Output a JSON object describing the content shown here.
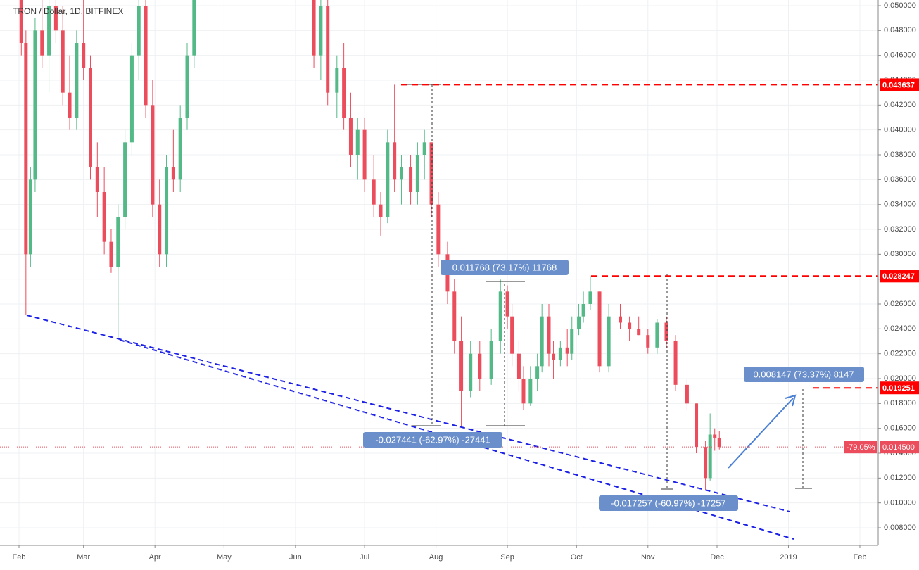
{
  "chart_data": {
    "type": "candlestick",
    "title": "TRON / Dollar, 1D, BITFINEX",
    "up_color": "#53b987",
    "down_color": "#eb4d5c",
    "grid": true,
    "xlim": [
      23.75,
      404.95
    ],
    "ylim": [
      0.006585,
      0.050453
    ],
    "xticks": [
      {
        "value": 32,
        "label": "Feb"
      },
      {
        "value": 60,
        "label": "Mar"
      },
      {
        "value": 91,
        "label": "Apr"
      },
      {
        "value": 121,
        "label": "May"
      },
      {
        "value": 152,
        "label": "Jun"
      },
      {
        "value": 182,
        "label": "Jul"
      },
      {
        "value": 213,
        "label": "Aug"
      },
      {
        "value": 244,
        "label": "Sep"
      },
      {
        "value": 274,
        "label": "Oct"
      },
      {
        "value": 305,
        "label": "Nov"
      },
      {
        "value": 335,
        "label": "Dec"
      },
      {
        "value": 366,
        "label": "2019"
      },
      {
        "value": 397,
        "label": "Feb"
      }
    ],
    "yticks": [
      {
        "value": 0.008,
        "label": "0.008000"
      },
      {
        "value": 0.01,
        "label": "0.010000"
      },
      {
        "value": 0.012,
        "label": "0.012000"
      },
      {
        "value": 0.014,
        "label": "0.014000"
      },
      {
        "value": 0.016,
        "label": "0.016000"
      },
      {
        "value": 0.018,
        "label": "0.018000"
      },
      {
        "value": 0.02,
        "label": "0.020000"
      },
      {
        "value": 0.022,
        "label": "0.022000"
      },
      {
        "value": 0.024,
        "label": "0.024000"
      },
      {
        "value": 0.026,
        "label": "0.026000"
      },
      {
        "value": 0.028,
        "label": "0.028000"
      },
      {
        "value": 0.03,
        "label": "0.030000"
      },
      {
        "value": 0.032,
        "label": "0.032000"
      },
      {
        "value": 0.034,
        "label": "0.034000"
      },
      {
        "value": 0.036,
        "label": "0.036000"
      },
      {
        "value": 0.038,
        "label": "0.038000"
      },
      {
        "value": 0.04,
        "label": "0.040000"
      },
      {
        "value": 0.042,
        "label": "0.042000"
      },
      {
        "value": 0.044,
        "label": "0.044000"
      },
      {
        "value": 0.046,
        "label": "0.046000"
      },
      {
        "value": 0.048,
        "label": "0.048000"
      },
      {
        "value": 0.05,
        "label": "0.050000"
      }
    ],
    "candles": {
      "x": [
        33,
        35,
        37,
        39,
        42,
        45,
        48,
        51,
        54,
        57,
        60,
        63,
        66,
        69,
        72,
        75,
        78,
        81,
        84,
        87,
        90,
        93,
        96,
        99,
        102,
        105,
        108,
        160,
        163,
        166,
        170,
        173,
        176,
        179,
        182,
        186,
        189,
        192,
        195,
        198,
        202,
        205,
        208,
        211,
        214,
        218,
        221,
        224,
        228,
        232,
        237,
        241,
        244,
        246,
        249,
        251,
        254,
        257,
        259,
        262,
        264,
        267,
        270,
        272,
        275,
        277,
        280,
        284,
        288,
        293,
        297,
        301,
        305,
        309,
        313,
        317,
        322,
        326,
        330,
        332,
        334,
        336
      ],
      "open": [
        0.052,
        0.047,
        0.03,
        0.036,
        0.048,
        0.046,
        0.05,
        0.048,
        0.043,
        0.041,
        0.047,
        0.045,
        0.037,
        0.035,
        0.031,
        0.029,
        0.033,
        0.039,
        0.046,
        0.05,
        0.042,
        0.034,
        0.03,
        0.037,
        0.036,
        0.041,
        0.046,
        0.058,
        0.046,
        0.05,
        0.043,
        0.045,
        0.041,
        0.038,
        0.04,
        0.036,
        0.034,
        0.033,
        0.039,
        0.036,
        0.037,
        0.035,
        0.038,
        0.039,
        0.034,
        0.03,
        0.027,
        0.023,
        0.019,
        0.022,
        0.02,
        0.023,
        0.027,
        0.025,
        0.022,
        0.02,
        0.018,
        0.02,
        0.021,
        0.025,
        0.022,
        0.0215,
        0.0225,
        0.022,
        0.024,
        0.025,
        0.026,
        0.027,
        0.021,
        0.025,
        0.0245,
        0.024,
        0.0235,
        0.0225,
        0.0245,
        0.023,
        0.0195,
        0.018,
        0.0145,
        0.012,
        0.0155,
        0.0152
      ],
      "high": [
        0.056,
        0.048,
        0.037,
        0.049,
        0.053,
        0.051,
        0.054,
        0.05,
        0.046,
        0.048,
        0.051,
        0.046,
        0.039,
        0.037,
        0.032,
        0.034,
        0.04,
        0.047,
        0.052,
        0.053,
        0.044,
        0.036,
        0.038,
        0.04,
        0.042,
        0.047,
        0.054,
        0.06,
        0.052,
        0.052,
        0.046,
        0.047,
        0.043,
        0.041,
        0.041,
        0.038,
        0.035,
        0.04,
        0.043637,
        0.038,
        0.038,
        0.039,
        0.04,
        0.039,
        0.035,
        0.031,
        0.028,
        0.025,
        0.023,
        0.023,
        0.024,
        0.027964,
        0.0275,
        0.026,
        0.023,
        0.021,
        0.021,
        0.022,
        0.026,
        0.026,
        0.023,
        0.023,
        0.024,
        0.025,
        0.026,
        0.027,
        0.028247,
        0.027,
        0.026,
        0.026,
        0.025,
        0.025,
        0.024,
        0.0248,
        0.025,
        0.0235,
        0.02,
        0.018,
        0.015,
        0.0172,
        0.016,
        0.0158
      ],
      "low": [
        0.046,
        0.0251,
        0.029,
        0.035,
        0.045,
        0.043,
        0.047,
        0.042,
        0.04,
        0.04,
        0.044,
        0.036,
        0.033,
        0.03,
        0.0285,
        0.0233,
        0.032,
        0.038,
        0.044,
        0.041,
        0.033,
        0.029,
        0.029,
        0.035,
        0.035,
        0.04,
        0.045,
        0.045,
        0.044,
        0.042,
        0.041,
        0.04,
        0.037,
        0.036,
        0.035,
        0.033,
        0.0315,
        0.0325,
        0.035,
        0.034,
        0.034,
        0.034,
        0.036,
        0.033,
        0.029,
        0.026,
        0.022,
        0.016196,
        0.0185,
        0.019,
        0.0195,
        0.022,
        0.024,
        0.021,
        0.019,
        0.0175,
        0.0178,
        0.019,
        0.0205,
        0.021,
        0.02,
        0.021,
        0.021,
        0.0215,
        0.0235,
        0.0245,
        0.0255,
        0.0205,
        0.0205,
        0.024,
        0.023,
        0.0235,
        0.022,
        0.022,
        0.0225,
        0.019,
        0.0175,
        0.014,
        0.01099,
        0.0118,
        0.0142,
        0.0143
      ],
      "close": [
        0.047,
        0.03,
        0.036,
        0.048,
        0.046,
        0.05,
        0.048,
        0.043,
        0.041,
        0.047,
        0.045,
        0.037,
        0.035,
        0.031,
        0.029,
        0.033,
        0.039,
        0.046,
        0.05,
        0.042,
        0.034,
        0.03,
        0.037,
        0.036,
        0.041,
        0.046,
        0.052,
        0.046,
        0.05,
        0.043,
        0.045,
        0.041,
        0.038,
        0.04,
        0.036,
        0.034,
        0.033,
        0.039,
        0.036,
        0.037,
        0.035,
        0.038,
        0.039,
        0.034,
        0.03,
        0.027,
        0.023,
        0.019,
        0.022,
        0.02,
        0.023,
        0.027,
        0.025,
        0.022,
        0.02,
        0.018,
        0.02,
        0.021,
        0.025,
        0.022,
        0.0215,
        0.0225,
        0.022,
        0.024,
        0.025,
        0.026,
        0.027,
        0.021,
        0.025,
        0.0245,
        0.024,
        0.0235,
        0.0225,
        0.0245,
        0.023,
        0.0195,
        0.018,
        0.0145,
        0.012,
        0.0155,
        0.0152,
        0.0145
      ]
    },
    "price_lines": [
      {
        "value": 0.043637,
        "label": "0.043637"
      },
      {
        "value": 0.028247,
        "label": "0.028247"
      },
      {
        "value": 0.019251,
        "label": "0.019251"
      }
    ],
    "price_line_color": "#ff0000",
    "last_price": {
      "value": 0.0145,
      "label": "0.014500",
      "change": "-79.05%"
    },
    "measurements": [
      "-0.027441 (-62.97%) -27441",
      "0.011768 (73.17%) 11768",
      "-0.017257 (-60.97%) -17257",
      "0.008147 (73.37%) 8147"
    ]
  }
}
